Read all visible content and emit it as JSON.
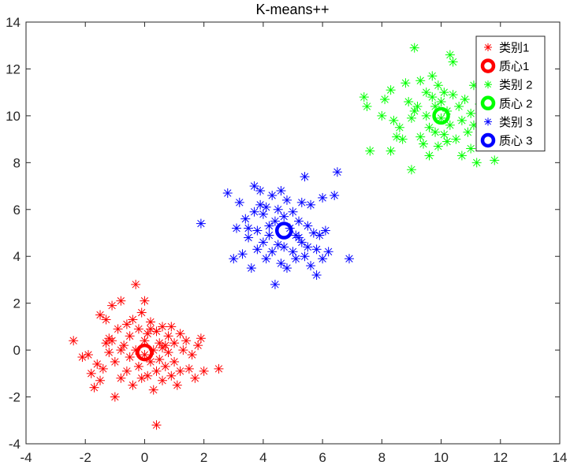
{
  "chart_data": {
    "type": "scatter",
    "title": "K-means++",
    "xlabel": "",
    "ylabel": "",
    "xlim": [
      -4,
      14
    ],
    "ylim": [
      -4,
      14
    ],
    "xticks": [
      -4,
      -2,
      0,
      2,
      4,
      6,
      8,
      10,
      12,
      14
    ],
    "yticks": [
      -4,
      -2,
      0,
      2,
      4,
      6,
      8,
      10,
      12,
      14
    ],
    "grid": false,
    "legend_position": "top-right",
    "series": [
      {
        "name": "类别1",
        "marker": "asterisk",
        "color": "#FF0000",
        "points": [
          [
            -2.4,
            0.4
          ],
          [
            -2.1,
            -0.3
          ],
          [
            -1.9,
            -0.2
          ],
          [
            -1.8,
            -1.0
          ],
          [
            -1.7,
            -1.6
          ],
          [
            -1.6,
            -0.6
          ],
          [
            -1.5,
            -1.3
          ],
          [
            -1.5,
            1.5
          ],
          [
            -1.4,
            -0.8
          ],
          [
            -1.3,
            0.3
          ],
          [
            -1.3,
            1.3
          ],
          [
            -1.2,
            -0.1
          ],
          [
            -1.2,
            0.5
          ],
          [
            -1.1,
            1.9
          ],
          [
            -1.0,
            -0.5
          ],
          [
            -1.0,
            -2.0
          ],
          [
            -0.9,
            0.9
          ],
          [
            -0.8,
            2.1
          ],
          [
            -0.8,
            -1.2
          ],
          [
            -0.7,
            0.2
          ],
          [
            -0.6,
            1.1
          ],
          [
            -0.6,
            -0.9
          ],
          [
            -0.5,
            -0.3
          ],
          [
            -0.5,
            0.6
          ],
          [
            -0.4,
            1.3
          ],
          [
            -0.4,
            -1.5
          ],
          [
            -0.3,
            2.8
          ],
          [
            -0.3,
            0.0
          ],
          [
            -0.2,
            -0.7
          ],
          [
            -0.2,
            0.9
          ],
          [
            -0.1,
            1.6
          ],
          [
            -0.1,
            -1.2
          ],
          [
            0.0,
            0.4
          ],
          [
            0.0,
            -0.2
          ],
          [
            0.0,
            2.1
          ],
          [
            0.1,
            -1.1
          ],
          [
            0.1,
            0.7
          ],
          [
            0.2,
            -0.5
          ],
          [
            0.2,
            1.2
          ],
          [
            0.3,
            -1.7
          ],
          [
            0.3,
            0.0
          ],
          [
            0.4,
            0.8
          ],
          [
            0.4,
            -0.9
          ],
          [
            0.4,
            -3.2
          ],
          [
            0.5,
            0.3
          ],
          [
            0.5,
            -0.4
          ],
          [
            0.6,
            1.0
          ],
          [
            0.6,
            -1.3
          ],
          [
            0.7,
            0.2
          ],
          [
            0.7,
            -0.7
          ],
          [
            0.8,
            0.6
          ],
          [
            0.8,
            -0.1
          ],
          [
            0.9,
            1.0
          ],
          [
            0.9,
            -1.1
          ],
          [
            1.0,
            0.3
          ],
          [
            1.0,
            -0.5
          ],
          [
            1.1,
            -1.5
          ],
          [
            1.2,
            0.7
          ],
          [
            1.2,
            -0.9
          ],
          [
            1.3,
            0.0
          ],
          [
            1.4,
            0.4
          ],
          [
            1.5,
            -0.8
          ],
          [
            1.6,
            -0.2
          ],
          [
            1.7,
            -1.2
          ],
          [
            1.8,
            0.2
          ],
          [
            1.9,
            0.5
          ],
          [
            2.0,
            -0.9
          ],
          [
            2.5,
            -0.8
          ],
          [
            -0.8,
            0.0
          ],
          [
            0.2,
            0.9
          ],
          [
            -1.1,
            0.4
          ],
          [
            0.6,
            0.1
          ]
        ]
      },
      {
        "name": "质心1",
        "marker": "circle",
        "color": "#FF0000",
        "points": [
          [
            0.0,
            -0.1
          ]
        ]
      },
      {
        "name": "类别 2",
        "marker": "asterisk",
        "color": "#00FF00",
        "points": [
          [
            7.4,
            10.8
          ],
          [
            7.5,
            10.4
          ],
          [
            7.6,
            8.5
          ],
          [
            8.0,
            10.0
          ],
          [
            8.1,
            10.7
          ],
          [
            8.3,
            11.1
          ],
          [
            8.3,
            8.5
          ],
          [
            8.5,
            9.1
          ],
          [
            8.6,
            9.5
          ],
          [
            8.7,
            9.0
          ],
          [
            8.8,
            11.4
          ],
          [
            8.9,
            10.6
          ],
          [
            9.0,
            9.9
          ],
          [
            9.0,
            7.7
          ],
          [
            9.1,
            12.9
          ],
          [
            9.1,
            10.2
          ],
          [
            9.2,
            10.4
          ],
          [
            9.3,
            9.1
          ],
          [
            9.3,
            11.5
          ],
          [
            9.4,
            8.8
          ],
          [
            9.5,
            11.0
          ],
          [
            9.5,
            10.0
          ],
          [
            9.6,
            8.3
          ],
          [
            9.6,
            9.5
          ],
          [
            9.7,
            11.7
          ],
          [
            9.7,
            10.8
          ],
          [
            9.8,
            9.3
          ],
          [
            9.8,
            10.4
          ],
          [
            9.9,
            8.7
          ],
          [
            9.9,
            11.3
          ],
          [
            10.0,
            9.9
          ],
          [
            10.0,
            10.6
          ],
          [
            10.1,
            9.2
          ],
          [
            10.1,
            11.0
          ],
          [
            10.2,
            10.2
          ],
          [
            10.2,
            8.9
          ],
          [
            10.3,
            12.6
          ],
          [
            10.3,
            9.6
          ],
          [
            10.4,
            10.9
          ],
          [
            10.4,
            12.3
          ],
          [
            10.5,
            9.0
          ],
          [
            10.6,
            10.4
          ],
          [
            10.7,
            8.3
          ],
          [
            10.7,
            9.8
          ],
          [
            10.8,
            10.7
          ],
          [
            10.9,
            9.3
          ],
          [
            11.0,
            8.6
          ],
          [
            11.0,
            10.1
          ],
          [
            11.1,
            9.6
          ],
          [
            11.1,
            11.3
          ],
          [
            11.2,
            8.0
          ],
          [
            11.3,
            10.5
          ],
          [
            11.5,
            9.1
          ],
          [
            11.6,
            10.3
          ],
          [
            11.8,
            8.1
          ],
          [
            8.4,
            9.8
          ]
        ]
      },
      {
        "name": "质心 2",
        "marker": "circle",
        "color": "#00FF00",
        "points": [
          [
            10.0,
            10.0
          ]
        ]
      },
      {
        "name": "类别 3",
        "marker": "asterisk",
        "color": "#0000FF",
        "points": [
          [
            1.9,
            5.4
          ],
          [
            2.8,
            6.7
          ],
          [
            3.0,
            3.9
          ],
          [
            3.1,
            5.2
          ],
          [
            3.2,
            6.3
          ],
          [
            3.3,
            4.1
          ],
          [
            3.4,
            5.6
          ],
          [
            3.5,
            4.8
          ],
          [
            3.6,
            3.5
          ],
          [
            3.7,
            7.0
          ],
          [
            3.7,
            5.9
          ],
          [
            3.8,
            4.3
          ],
          [
            3.8,
            5.1
          ],
          [
            3.9,
            6.2
          ],
          [
            3.9,
            6.8
          ],
          [
            4.0,
            4.6
          ],
          [
            4.0,
            5.8
          ],
          [
            4.1,
            3.9
          ],
          [
            4.2,
            5.3
          ],
          [
            4.2,
            4.9
          ],
          [
            4.3,
            6.6
          ],
          [
            4.3,
            4.2
          ],
          [
            4.4,
            5.5
          ],
          [
            4.4,
            2.8
          ],
          [
            4.5,
            6.0
          ],
          [
            4.5,
            4.5
          ],
          [
            4.6,
            6.8
          ],
          [
            4.6,
            3.7
          ],
          [
            4.7,
            5.7
          ],
          [
            4.7,
            4.4
          ],
          [
            4.8,
            6.4
          ],
          [
            4.8,
            3.5
          ],
          [
            4.9,
            5.2
          ],
          [
            5.0,
            4.2
          ],
          [
            5.0,
            5.9
          ],
          [
            5.1,
            4.9
          ],
          [
            5.1,
            3.9
          ],
          [
            5.2,
            5.5
          ],
          [
            5.3,
            6.3
          ],
          [
            5.3,
            4.6
          ],
          [
            5.4,
            4.0
          ],
          [
            5.4,
            7.4
          ],
          [
            5.5,
            5.3
          ],
          [
            5.5,
            4.4
          ],
          [
            5.6,
            6.2
          ],
          [
            5.6,
            3.6
          ],
          [
            5.7,
            5.0
          ],
          [
            5.8,
            4.3
          ],
          [
            5.8,
            3.2
          ],
          [
            5.9,
            4.9
          ],
          [
            6.0,
            6.5
          ],
          [
            6.0,
            3.9
          ],
          [
            6.1,
            5.1
          ],
          [
            6.2,
            4.2
          ],
          [
            6.4,
            6.6
          ],
          [
            6.5,
            7.6
          ],
          [
            6.9,
            3.9
          ],
          [
            3.5,
            5.2
          ],
          [
            4.1,
            6.1
          ],
          [
            5.2,
            4.8
          ]
        ]
      },
      {
        "name": "质心 3",
        "marker": "circle",
        "color": "#0000FF",
        "points": [
          [
            4.7,
            5.1
          ]
        ]
      }
    ]
  }
}
